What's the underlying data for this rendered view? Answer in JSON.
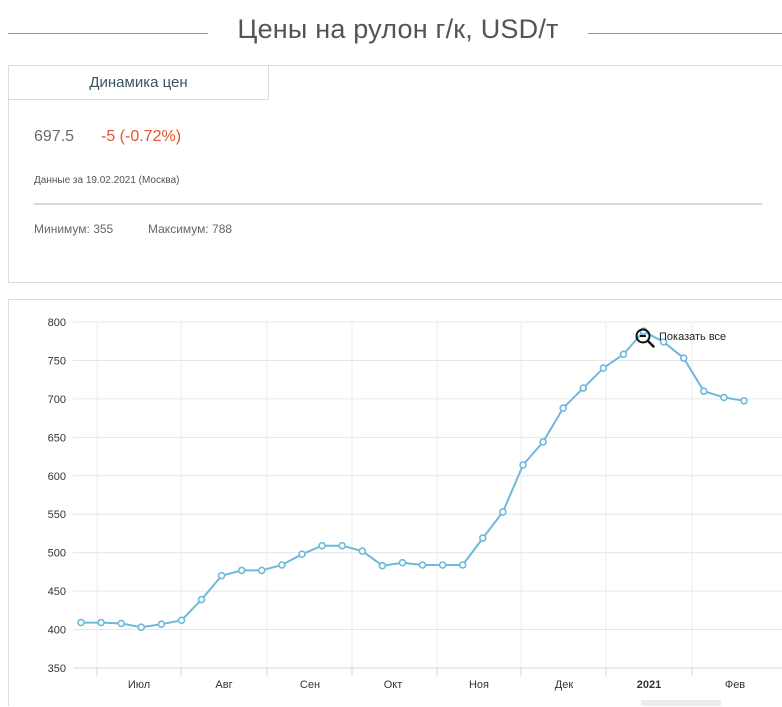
{
  "header": {
    "title": "Цены на рулон г/к, USD/т"
  },
  "summary": {
    "tab_label": "Динамика цен",
    "price": "697.5",
    "change": "-5 (-0.72%)",
    "date_note": "Данные за 19.02.2021 (Москва)",
    "minimum": "Минимум: 355",
    "maximum": "Максимум: 788"
  },
  "zoom": {
    "reset_label": "Показать все"
  },
  "colors": {
    "accent": "#d9805a",
    "line": "#6fb8dc",
    "change": "#e0542a"
  },
  "chart_data": {
    "type": "line",
    "title": "",
    "xlabel": "",
    "ylabel": "",
    "ylim": [
      350,
      800
    ],
    "y_ticks": [
      350,
      400,
      450,
      500,
      550,
      600,
      650,
      700,
      750,
      800
    ],
    "x_tick_labels": [
      {
        "label": "Июл",
        "bold": false
      },
      {
        "label": "Авг",
        "bold": false
      },
      {
        "label": "Сен",
        "bold": false
      },
      {
        "label": "Окт",
        "bold": false
      },
      {
        "label": "Ноя",
        "bold": false
      },
      {
        "label": "Дек",
        "bold": false
      },
      {
        "label": "2021",
        "bold": true
      },
      {
        "label": "Фев",
        "bold": false
      }
    ],
    "grid": true,
    "series": [
      {
        "values": [
          409,
          409,
          408,
          403,
          407,
          412,
          439,
          470,
          477,
          477,
          484,
          498,
          509,
          509,
          502,
          483,
          487,
          484,
          484,
          484,
          519,
          553,
          614,
          644,
          688,
          714,
          740,
          758,
          788,
          774,
          753,
          710,
          702,
          697.5
        ]
      }
    ]
  }
}
